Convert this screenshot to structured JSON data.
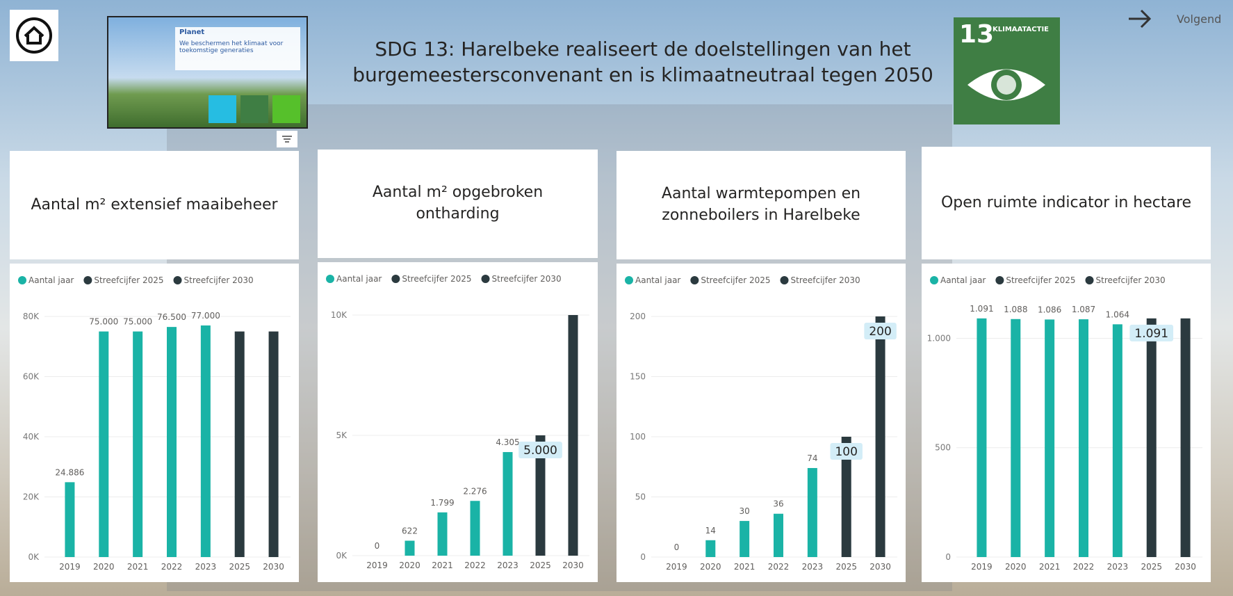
{
  "header": {
    "title": "SDG 13: Harelbeke realiseert de doelstellingen van het burgemeestersconvenant en is klimaatneutraal tegen 2050",
    "next": "Volgend"
  },
  "planet_card": {
    "title": "Planet",
    "text": "We beschermen het klimaat voor toekomstige generaties"
  },
  "sdg_tile": {
    "number": "13",
    "label": "KLIMAATACTIE"
  },
  "chart_data": [
    {
      "type": "bar",
      "title": "Aantal m² extensief maaibeheer",
      "categories": [
        "2019",
        "2020",
        "2021",
        "2022",
        "2023",
        "2025",
        "2030"
      ],
      "series": [
        {
          "name": "Aantal jaar",
          "color": "#1ab3a6",
          "values": [
            24886,
            75000,
            75000,
            76500,
            77000,
            null,
            null
          ],
          "value_labels": [
            "24.886",
            "75.000",
            "75.000",
            "76.500",
            "77.000",
            null,
            null
          ]
        },
        {
          "name": "Streefcijfer 2025",
          "color": "#2b3a3f",
          "values": [
            null,
            null,
            null,
            null,
            null,
            75000,
            null
          ]
        },
        {
          "name": "Streefcijfer 2030",
          "color": "#2b3a3f",
          "values": [
            null,
            null,
            null,
            null,
            null,
            null,
            75000
          ]
        }
      ],
      "ylim": [
        0,
        80000
      ],
      "yticks": [
        {
          "value": 0,
          "label": "0K"
        },
        {
          "value": 20000,
          "label": "20K"
        },
        {
          "value": 40000,
          "label": "40K"
        },
        {
          "value": 60000,
          "label": "60K"
        },
        {
          "value": 80000,
          "label": "80K"
        }
      ],
      "grid": true
    },
    {
      "type": "bar",
      "title": "Aantal m² opgebroken ontharding",
      "categories": [
        "2019",
        "2020",
        "2021",
        "2022",
        "2023",
        "2025",
        "2030"
      ],
      "series": [
        {
          "name": "Aantal jaar",
          "color": "#1ab3a6",
          "values": [
            0,
            622,
            1799,
            2276,
            4305,
            null,
            null
          ],
          "value_labels": [
            "0",
            "622",
            "1.799",
            "2.276",
            "4.305",
            null,
            null
          ]
        },
        {
          "name": "Streefcijfer 2025",
          "color": "#2b3a3f",
          "values": [
            null,
            null,
            null,
            null,
            null,
            5000,
            null
          ],
          "value_labels": [
            null,
            null,
            null,
            null,
            null,
            "5.000",
            null
          ]
        },
        {
          "name": "Streefcijfer 2030",
          "color": "#2b3a3f",
          "values": [
            null,
            null,
            null,
            null,
            null,
            null,
            10000
          ]
        }
      ],
      "ylim": [
        0,
        10000
      ],
      "yticks": [
        {
          "value": 0,
          "label": "0K"
        },
        {
          "value": 5000,
          "label": "5K"
        },
        {
          "value": 10000,
          "label": "10K"
        }
      ],
      "grid": true
    },
    {
      "type": "bar",
      "title": "Aantal warmtepompen en zonneboilers in Harelbeke",
      "categories": [
        "2019",
        "2020",
        "2021",
        "2022",
        "2023",
        "2025",
        "2030"
      ],
      "series": [
        {
          "name": "Aantal jaar",
          "color": "#1ab3a6",
          "values": [
            0,
            14,
            30,
            36,
            74,
            null,
            null
          ],
          "data_labels": true
        },
        {
          "name": "Streefcijfer 2025",
          "color": "#2b3a3f",
          "values": [
            null,
            null,
            null,
            null,
            null,
            100,
            null
          ],
          "data_labels": true
        },
        {
          "name": "Streefcijfer 2030",
          "color": "#2b3a3f",
          "values": [
            null,
            null,
            null,
            null,
            null,
            null,
            200
          ],
          "data_labels": true
        }
      ],
      "ylim": [
        0,
        200
      ],
      "yticks": [
        0,
        50,
        100,
        150,
        200
      ],
      "grid": true
    },
    {
      "type": "bar",
      "title": "Open ruimte indicator in hectare",
      "categories": [
        "2019",
        "2020",
        "2021",
        "2022",
        "2023",
        "2025",
        "2030"
      ],
      "series": [
        {
          "name": "Aantal jaar",
          "color": "#1ab3a6",
          "values": [
            1091,
            1088,
            1086,
            1087,
            1064,
            null,
            null
          ],
          "value_labels": [
            "1.091",
            "1.088",
            "1.086",
            "1.087",
            "1.064",
            null,
            null
          ]
        },
        {
          "name": "Streefcijfer 2025",
          "color": "#2b3a3f",
          "values": [
            null,
            null,
            null,
            null,
            null,
            1091,
            null
          ],
          "value_labels": [
            null,
            null,
            null,
            null,
            null,
            "1.091",
            null
          ]
        },
        {
          "name": "Streefcijfer 2030",
          "color": "#2b3a3f",
          "values": [
            null,
            null,
            null,
            null,
            null,
            null,
            1091
          ]
        }
      ],
      "ylim": [
        0,
        1100
      ],
      "yticks": [
        0,
        500,
        {
          "value": 1000,
          "label": "1.000"
        }
      ],
      "grid": true
    }
  ]
}
